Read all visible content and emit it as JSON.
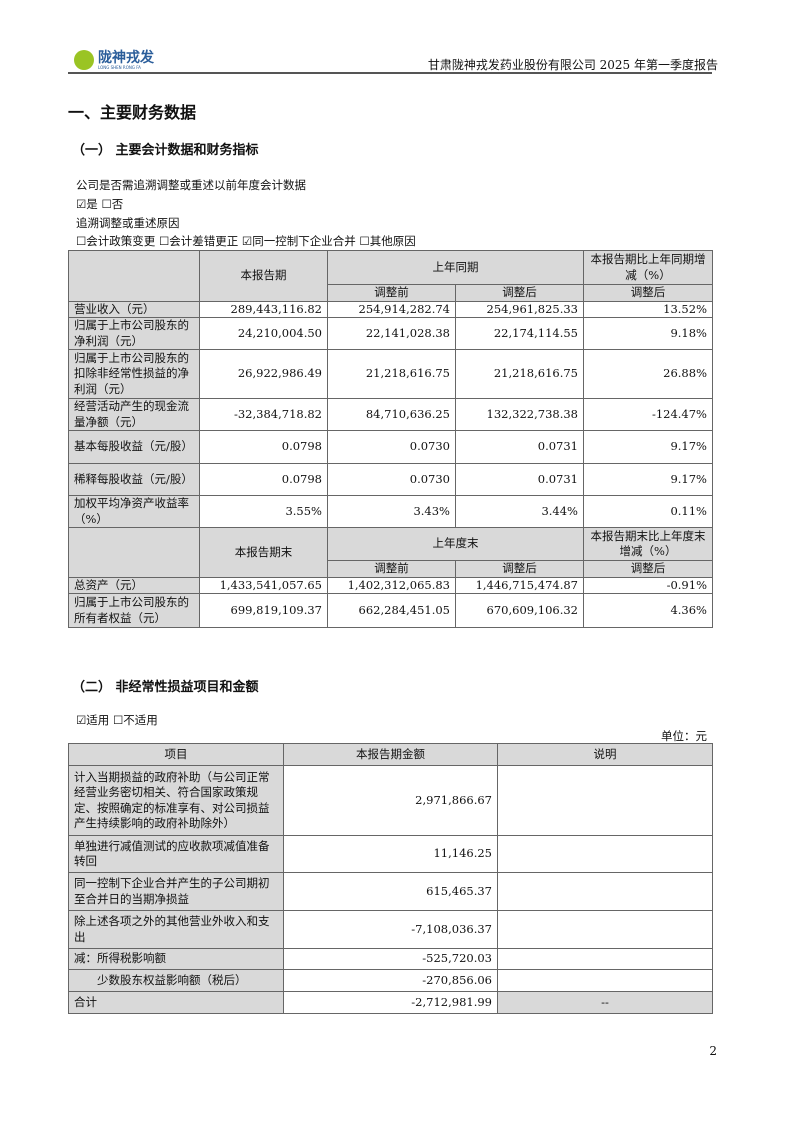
{
  "header": {
    "logo_text": "陇神戎发",
    "logo_sub": "LONG SHEN RONG FA",
    "title": "甘肃陇神戎发药业股份有限公司 2025 年第一季度报告"
  },
  "section_title": "一、主要财务数据",
  "sub1": {
    "title": "（一） 主要会计数据和财务指标",
    "question": "公司是否需追溯调整或重述以前年度会计数据",
    "answer": "☑是 ☐否",
    "reason_label": "追溯调整或重述原因",
    "reasons": "☐会计政策变更 ☐会计差错更正 ☑同一控制下企业合并 ☐其他原因",
    "head1": {
      "current": "本报告期",
      "prior": "上年同期",
      "before": "调整前",
      "after": "调整后",
      "change": "本报告期比上年同期增减（%）",
      "change_sub": "调整后"
    },
    "rows1": [
      [
        "营业收入（元）",
        "289,443,116.82",
        "254,914,282.74",
        "254,961,825.33",
        "13.52%"
      ],
      [
        "归属于上市公司股东的净利润（元）",
        "24,210,004.50",
        "22,141,028.38",
        "22,174,114.55",
        "9.18%"
      ],
      [
        "归属于上市公司股东的扣除非经常性损益的净利润（元）",
        "26,922,986.49",
        "21,218,616.75",
        "21,218,616.75",
        "26.88%"
      ],
      [
        "经营活动产生的现金流量净额（元）",
        "-32,384,718.82",
        "84,710,636.25",
        "132,322,738.38",
        "-124.47%"
      ],
      [
        "基本每股收益（元/股）",
        "0.0798",
        "0.0730",
        "0.0731",
        "9.17%"
      ],
      [
        "稀释每股收益（元/股）",
        "0.0798",
        "0.0730",
        "0.0731",
        "9.17%"
      ],
      [
        "加权平均净资产收益率（%）",
        "3.55%",
        "3.43%",
        "3.44%",
        "0.11%"
      ]
    ],
    "head2": {
      "current": "本报告期末",
      "prior": "上年度末",
      "before": "调整前",
      "after": "调整后",
      "change": "本报告期末比上年度末增减（%）",
      "change_sub": "调整后"
    },
    "rows2": [
      [
        "总资产（元）",
        "1,433,541,057.65",
        "1,402,312,065.83",
        "1,446,715,474.87",
        "-0.91%"
      ],
      [
        "归属于上市公司股东的所有者权益（元）",
        "699,819,109.37",
        "662,284,451.05",
        "670,609,106.32",
        "4.36%"
      ]
    ]
  },
  "sub2": {
    "title": "（二） 非经常性损益项目和金额",
    "applicable": "☑适用 ☐不适用",
    "unit": "单位：元",
    "headers": [
      "项目",
      "本报告期金额",
      "说明"
    ],
    "rows": [
      [
        "计入当期损益的政府补助（与公司正常经营业务密切相关、符合国家政策规定、按照确定的标准享有、对公司损益产生持续影响的政府补助除外）",
        "2,971,866.67",
        ""
      ],
      [
        "单独进行减值测试的应收款项减值准备转回",
        "11,146.25",
        ""
      ],
      [
        "同一控制下企业合并产生的子公司期初至合并日的当期净损益",
        "615,465.37",
        ""
      ],
      [
        "除上述各项之外的其他营业外收入和支出",
        "-7,108,036.37",
        ""
      ],
      [
        "减：所得税影响额",
        "-525,720.03",
        ""
      ],
      [
        "　　少数股东权益影响额（税后）",
        "-270,856.06",
        ""
      ],
      [
        "合计",
        "-2,712,981.99",
        "--"
      ]
    ]
  },
  "page_number": "2"
}
